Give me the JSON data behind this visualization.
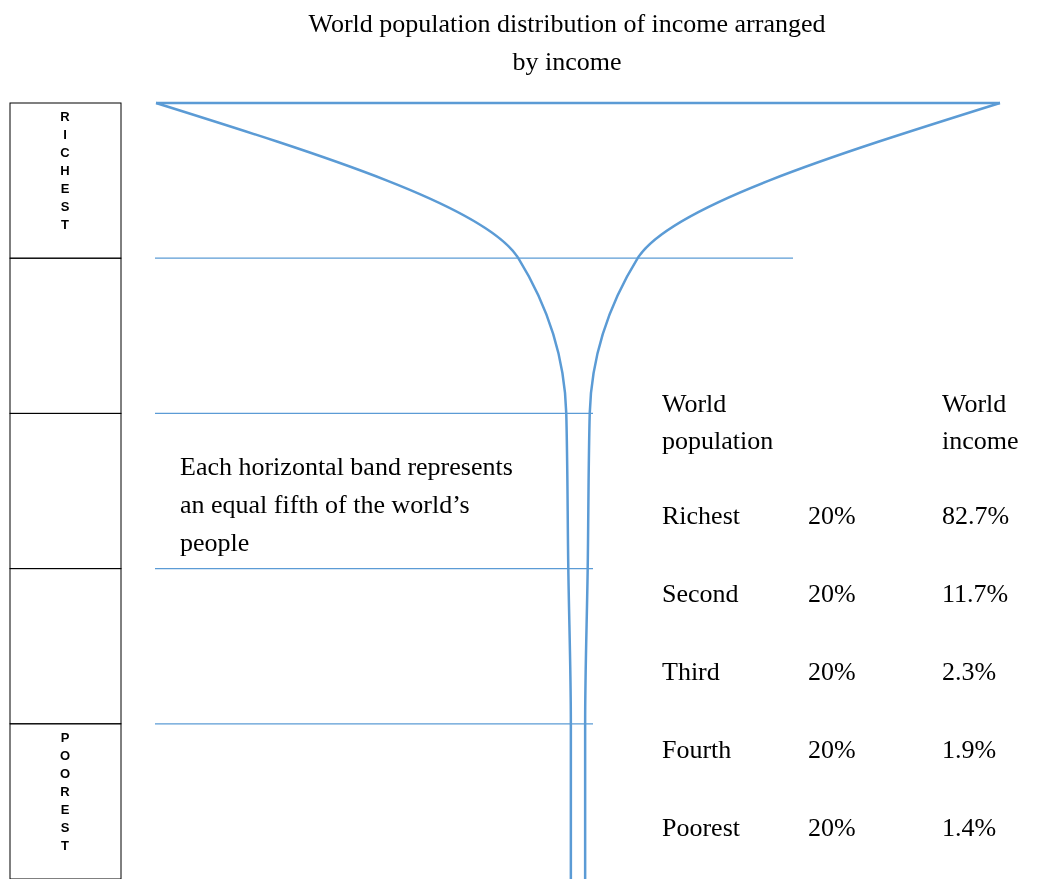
{
  "chart_data": {
    "type": "other",
    "title": "World population distribution of income arranged by income",
    "categories": [
      "Richest",
      "Second",
      "Third",
      "Fourth",
      "Poorest"
    ],
    "series": [
      {
        "name": "World population",
        "values": [
          20,
          20,
          20,
          20,
          20
        ],
        "value_labels": [
          "20%",
          "20%",
          "20%",
          "20%",
          "20%"
        ]
      },
      {
        "name": "World income",
        "values": [
          82.7,
          11.7,
          2.3,
          1.9,
          1.4
        ],
        "value_labels": [
          "82.7%",
          "11.7%",
          "2.3%",
          "1.9%",
          "1.4%"
        ]
      }
    ],
    "annotations": [
      "Each horizontal band represents an equal fifth of the world’s people",
      "RICHEST",
      "POOREST"
    ]
  }
}
